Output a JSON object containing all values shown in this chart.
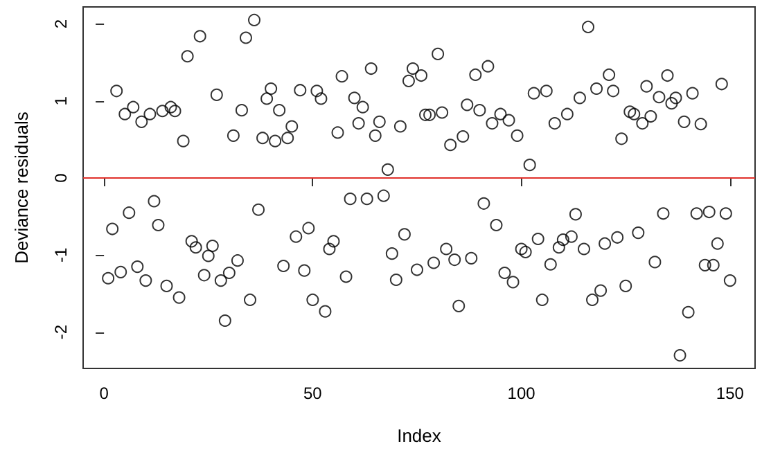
{
  "chart_data": {
    "type": "scatter",
    "xlabel": "Index",
    "ylabel": "Deviance residuals",
    "xlim": [
      -5,
      156
    ],
    "xticks": [
      0,
      50,
      100,
      150
    ],
    "ylim": [
      -2.47,
      2.22
    ],
    "yticks": [
      -2,
      -1,
      0,
      1,
      2
    ],
    "grid": false,
    "marker": "circle",
    "ref_lines": [
      {
        "axis": "y",
        "value": 0,
        "color": "#e0302a"
      }
    ],
    "x": [
      1,
      2,
      3,
      4,
      5,
      6,
      7,
      8,
      9,
      10,
      11,
      12,
      13,
      14,
      15,
      16,
      17,
      18,
      19,
      20,
      21,
      22,
      23,
      24,
      25,
      26,
      27,
      28,
      29,
      30,
      31,
      32,
      33,
      34,
      35,
      36,
      37,
      38,
      39,
      40,
      41,
      42,
      43,
      44,
      45,
      46,
      47,
      48,
      49,
      50,
      51,
      52,
      53,
      54,
      55,
      56,
      57,
      58,
      59,
      60,
      61,
      62,
      63,
      64,
      65,
      66,
      67,
      68,
      69,
      70,
      71,
      72,
      73,
      74,
      75,
      76,
      77,
      78,
      79,
      80,
      81,
      82,
      83,
      84,
      85,
      86,
      87,
      88,
      89,
      90,
      91,
      92,
      93,
      94,
      95,
      96,
      97,
      98,
      99,
      100,
      101,
      102,
      103,
      104,
      105,
      106,
      107,
      108,
      109,
      110,
      111,
      112,
      113,
      114,
      115,
      116,
      117,
      118,
      119,
      120,
      121,
      122,
      123,
      124,
      125,
      126,
      127,
      128,
      129,
      130,
      131,
      132,
      133,
      134,
      135,
      136,
      137,
      138,
      139,
      140,
      141,
      142,
      143,
      144,
      145,
      146,
      147,
      148,
      149,
      150
    ],
    "series": [
      {
        "color": "#000000",
        "values": [
          -1.3,
          -0.66,
          1.13,
          -1.22,
          0.83,
          -0.45,
          0.92,
          -1.15,
          0.73,
          -1.33,
          0.83,
          -0.3,
          -0.61,
          0.87,
          -1.4,
          0.92,
          0.87,
          -1.55,
          0.48,
          1.58,
          -0.82,
          -0.9,
          1.84,
          -1.26,
          -1.01,
          -0.88,
          1.08,
          -1.33,
          -1.85,
          -1.23,
          0.55,
          -1.07,
          0.88,
          1.82,
          -1.58,
          2.05,
          -0.41,
          0.52,
          1.03,
          1.16,
          0.48,
          0.88,
          -1.14,
          0.52,
          0.67,
          -0.76,
          1.14,
          -1.2,
          -0.65,
          -1.58,
          1.13,
          1.03,
          -1.73,
          -0.92,
          -0.82,
          0.59,
          1.32,
          -1.28,
          -0.27,
          1.04,
          0.71,
          0.92,
          -0.27,
          1.42,
          0.55,
          0.73,
          -0.23,
          0.11,
          -0.98,
          -1.32,
          0.67,
          -0.73,
          1.26,
          1.42,
          -1.19,
          1.33,
          0.82,
          0.82,
          -1.1,
          1.61,
          0.85,
          -0.92,
          0.43,
          -1.06,
          -1.66,
          0.54,
          0.95,
          -1.04,
          1.34,
          0.88,
          -0.33,
          1.45,
          0.71,
          -0.61,
          0.83,
          -1.23,
          0.75,
          -1.35,
          0.55,
          -0.92,
          -0.96,
          0.17,
          1.1,
          -0.79,
          -1.58,
          1.13,
          -1.12,
          0.71,
          -0.9,
          -0.8,
          0.83,
          -0.76,
          -0.47,
          1.04,
          -0.92,
          1.96,
          -1.58,
          1.16,
          -1.46,
          -0.85,
          1.34,
          1.13,
          -0.77,
          0.51,
          -1.4,
          0.86,
          0.83,
          -0.71,
          0.71,
          1.19,
          0.8,
          -1.09,
          1.05,
          -0.46,
          1.33,
          0.97,
          1.04,
          -2.3,
          0.73,
          -1.74,
          1.1,
          -0.46,
          0.7,
          -1.13,
          -0.44,
          -1.13,
          -0.85,
          1.22,
          -0.46,
          -1.33
        ]
      }
    ]
  }
}
